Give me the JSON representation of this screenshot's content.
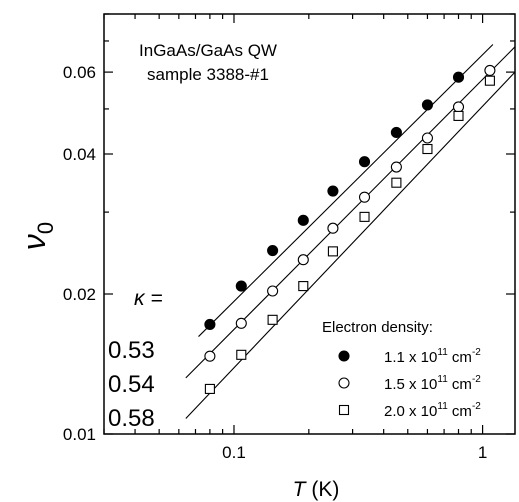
{
  "chart_data": {
    "type": "scatter",
    "annotation_line1": "InGaAs/GaAs QW",
    "annotation_line2": "sample 3388-#1",
    "xlabel_symbol": "T",
    "xlabel_unit": " (K)",
    "ylabel_symbol": "ν",
    "ylabel_subscript": "0",
    "x_scale": "log",
    "y_scale": "log",
    "xlim": [
      0.03,
      1.35
    ],
    "ylim": [
      0.01,
      0.08
    ],
    "x_ticks": [
      {
        "value": 0.1,
        "label": "0.1"
      },
      {
        "value": 1,
        "label": "1"
      }
    ],
    "y_ticks": [
      {
        "value": 0.01,
        "label": "0.01"
      },
      {
        "value": 0.02,
        "label": "0.02"
      },
      {
        "value": 0.04,
        "label": "0.04"
      },
      {
        "value": 0.06,
        "label": "0.06"
      }
    ],
    "kappa_label": "κ =",
    "legend_title": "Electron density:",
    "legend_position": "bottom-right",
    "series": [
      {
        "label_prefix": "1.1 x 10",
        "label_exp": "11",
        "label_unit": " cm",
        "label_unit_exp": "-2",
        "marker": "filled-circle",
        "kappa": "0.53",
        "x": [
          0.08,
          0.107,
          0.143,
          0.19,
          0.25,
          0.335,
          0.45,
          0.6,
          0.8
        ],
        "y": [
          0.0172,
          0.0208,
          0.0248,
          0.0288,
          0.0333,
          0.0385,
          0.0445,
          0.051,
          0.0585
        ],
        "fit": {
          "x": [
            0.072,
            1.1
          ],
          "y": [
            0.0162,
            0.0688
          ]
        }
      },
      {
        "label_prefix": "1.5 x 10",
        "label_exp": "11",
        "label_unit": " cm",
        "label_unit_exp": "-2",
        "marker": "open-circle",
        "kappa": "0.54",
        "x": [
          0.08,
          0.107,
          0.143,
          0.19,
          0.25,
          0.335,
          0.45,
          0.6,
          0.8,
          1.07
        ],
        "y": [
          0.0147,
          0.0173,
          0.0203,
          0.0237,
          0.0277,
          0.0323,
          0.0375,
          0.0433,
          0.0505,
          0.0605
        ],
        "fit": {
          "x": [
            0.064,
            1.35
          ],
          "y": [
            0.0132,
            0.068
          ]
        }
      },
      {
        "label_prefix": "2.0 x 10",
        "label_exp": "11",
        "label_unit": " cm",
        "label_unit_exp": "-2",
        "marker": "open-square",
        "kappa": "0.58",
        "x": [
          0.08,
          0.107,
          0.143,
          0.19,
          0.25,
          0.335,
          0.45,
          0.6,
          0.8,
          1.07
        ],
        "y": [
          0.0125,
          0.0148,
          0.0176,
          0.0208,
          0.0247,
          0.0293,
          0.0347,
          0.041,
          0.0483,
          0.0575
        ],
        "fit": {
          "x": [
            0.064,
            1.35
          ],
          "y": [
            0.0108,
            0.06
          ]
        }
      }
    ]
  }
}
